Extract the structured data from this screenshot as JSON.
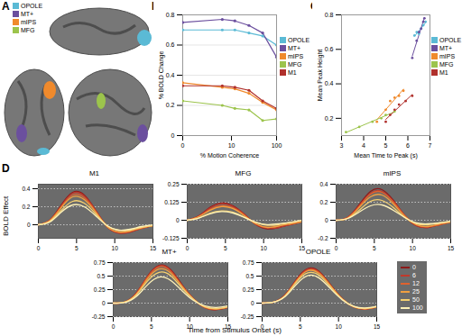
{
  "chart_data": [
    {
      "panel": "A",
      "type": "legend",
      "series": [
        {
          "name": "OPOLE",
          "color": "#5bbad5"
        },
        {
          "name": "MT+",
          "color": "#6b4f9e"
        },
        {
          "name": "mIPS",
          "color": "#f08a2c"
        },
        {
          "name": "MFG",
          "color": "#9cc44c"
        }
      ]
    },
    {
      "panel": "B",
      "type": "line",
      "x_label": "% Motion Coherence",
      "y_label": "% BOLD Change",
      "x": [
        0,
        6,
        12,
        25,
        50,
        100
      ],
      "xlim": [
        0,
        100
      ],
      "xticks": [
        0,
        10,
        100
      ],
      "ylim": [
        0,
        0.8
      ],
      "yticks": [
        0,
        0.2,
        0.4,
        0.6,
        0.8
      ],
      "grid": true,
      "legend": "right",
      "marker": "circle",
      "series": [
        {
          "name": "OPOLE",
          "color": "#5bbad5",
          "values": [
            0.7,
            0.7,
            0.7,
            0.68,
            0.66,
            0.6
          ]
        },
        {
          "name": "MT+",
          "color": "#6b4f9e",
          "values": [
            0.75,
            0.77,
            0.76,
            0.73,
            0.68,
            0.52
          ]
        },
        {
          "name": "mIPS",
          "color": "#f08a2c",
          "values": [
            0.35,
            0.32,
            0.31,
            0.28,
            0.22,
            0.17
          ]
        },
        {
          "name": "MFG",
          "color": "#9cc44c",
          "values": [
            0.23,
            0.2,
            0.18,
            0.17,
            0.1,
            0.11
          ]
        },
        {
          "name": "M1",
          "color": "#b0302c",
          "values": [
            0.33,
            0.33,
            0.32,
            0.3,
            0.23,
            0.18
          ]
        }
      ]
    },
    {
      "panel": "C",
      "type": "scatter",
      "x_label": "Mean Time to Peak (s)",
      "y_label": "Mean Peak Height",
      "xlim": [
        3,
        7
      ],
      "xticks": [
        3,
        4,
        5,
        6,
        7
      ],
      "ylim": [
        0.1,
        0.8
      ],
      "yticks": [
        0.2,
        0.4,
        0.6,
        0.8
      ],
      "grid": false,
      "legend": "right",
      "marker": "circle",
      "series": [
        {
          "name": "OPOLE",
          "color": "#5bbad5",
          "x": [
            6.3,
            6.4,
            6.5,
            6.6,
            6.7,
            6.8
          ],
          "values": [
            0.68,
            0.7,
            0.69,
            0.72,
            0.74,
            0.76
          ]
        },
        {
          "name": "MT+",
          "color": "#6b4f9e",
          "x": [
            6.2,
            6.4,
            6.5,
            6.6,
            6.7,
            6.75
          ],
          "values": [
            0.55,
            0.65,
            0.7,
            0.72,
            0.76,
            0.78
          ]
        },
        {
          "name": "mIPS",
          "color": "#f08a2c",
          "x": [
            4.6,
            5.0,
            5.2,
            5.4,
            5.6,
            5.8
          ],
          "values": [
            0.18,
            0.25,
            0.3,
            0.32,
            0.33,
            0.36
          ]
        },
        {
          "name": "MFG",
          "color": "#9cc44c",
          "x": [
            3.2,
            3.8,
            4.4,
            4.8,
            5.0,
            5.4
          ],
          "values": [
            0.12,
            0.15,
            0.18,
            0.2,
            0.22,
            0.24
          ]
        },
        {
          "name": "M1",
          "color": "#b0302c",
          "x": [
            5.0,
            5.2,
            5.4,
            5.6,
            5.9,
            6.2
          ],
          "values": [
            0.18,
            0.22,
            0.25,
            0.28,
            0.3,
            0.33
          ]
        }
      ]
    },
    {
      "panel": "D",
      "type": "line",
      "x_label": "Time from Stimulus Onset (s)",
      "y_label": "BOLD Effect",
      "x": [
        0,
        1.5,
        3,
        4.5,
        6,
        7.5,
        9,
        10.5,
        12,
        13.5,
        15
      ],
      "xlim": [
        0,
        15
      ],
      "xticks": [
        0,
        5,
        10,
        15
      ],
      "grid": true,
      "legend": "right",
      "legend_series": [
        {
          "name": "0",
          "color": "#8b1a1a"
        },
        {
          "name": "6",
          "color": "#c0392b"
        },
        {
          "name": "12",
          "color": "#e0622e"
        },
        {
          "name": "25",
          "color": "#f0a040"
        },
        {
          "name": "50",
          "color": "#f5d070"
        },
        {
          "name": "100",
          "color": "#fff2b8"
        }
      ],
      "charts": [
        {
          "title": "M1",
          "ylim": [
            -0.15,
            0.45
          ],
          "yticks": [
            0,
            0.2,
            0.4
          ],
          "series": [
            {
              "name": "0",
              "values": [
                0,
                0.05,
                0.22,
                0.36,
                0.33,
                0.16,
                -0.02,
                -0.09,
                -0.08,
                -0.04,
                -0.01
              ]
            },
            {
              "name": "6",
              "values": [
                0,
                0.05,
                0.21,
                0.35,
                0.32,
                0.16,
                -0.02,
                -0.09,
                -0.08,
                -0.04,
                -0.01
              ]
            },
            {
              "name": "12",
              "values": [
                0,
                0.05,
                0.2,
                0.33,
                0.3,
                0.15,
                -0.02,
                -0.08,
                -0.07,
                -0.04,
                -0.01
              ]
            },
            {
              "name": "25",
              "values": [
                0,
                0.04,
                0.19,
                0.31,
                0.28,
                0.14,
                -0.02,
                -0.08,
                -0.07,
                -0.03,
                -0.01
              ]
            },
            {
              "name": "50",
              "values": [
                0,
                0.04,
                0.16,
                0.26,
                0.24,
                0.12,
                -0.01,
                -0.06,
                -0.06,
                -0.03,
                -0.01
              ]
            },
            {
              "name": "100",
              "values": [
                0,
                0.03,
                0.14,
                0.22,
                0.2,
                0.1,
                -0.01,
                -0.06,
                -0.05,
                -0.02,
                0
              ]
            }
          ]
        },
        {
          "title": "MFG",
          "ylim": [
            -0.125,
            0.25
          ],
          "yticks": [
            -0.125,
            0,
            0.125,
            0.25
          ],
          "series": [
            {
              "name": "0",
              "values": [
                0,
                0.03,
                0.09,
                0.12,
                0.1,
                0.04,
                -0.03,
                -0.06,
                -0.05,
                -0.03,
                -0.01
              ]
            },
            {
              "name": "6",
              "values": [
                0,
                0.03,
                0.085,
                0.115,
                0.095,
                0.04,
                -0.03,
                -0.055,
                -0.05,
                -0.03,
                -0.01
              ]
            },
            {
              "name": "12",
              "values": [
                0,
                0.025,
                0.075,
                0.1,
                0.085,
                0.035,
                -0.025,
                -0.05,
                -0.04,
                -0.025,
                -0.01
              ]
            },
            {
              "name": "25",
              "values": [
                0,
                0.025,
                0.07,
                0.095,
                0.08,
                0.03,
                -0.025,
                -0.05,
                -0.04,
                -0.025,
                -0.01
              ]
            },
            {
              "name": "50",
              "values": [
                0,
                0.015,
                0.05,
                0.065,
                0.055,
                0.02,
                -0.015,
                -0.035,
                -0.03,
                -0.015,
                0
              ]
            },
            {
              "name": "100",
              "values": [
                0,
                0.015,
                0.045,
                0.06,
                0.05,
                0.02,
                -0.015,
                -0.03,
                -0.025,
                -0.015,
                0
              ]
            }
          ]
        },
        {
          "title": "mIPS",
          "ylim": [
            -0.2,
            0.4
          ],
          "yticks": [
            -0.2,
            0,
            0.2,
            0.4
          ],
          "series": [
            {
              "name": "0",
              "values": [
                0,
                0.03,
                0.17,
                0.32,
                0.34,
                0.22,
                0.05,
                -0.06,
                -0.08,
                -0.05,
                -0.02
              ]
            },
            {
              "name": "6",
              "values": [
                0,
                0.03,
                0.16,
                0.3,
                0.32,
                0.21,
                0.05,
                -0.06,
                -0.08,
                -0.05,
                -0.02
              ]
            },
            {
              "name": "12",
              "values": [
                0,
                0.03,
                0.15,
                0.29,
                0.31,
                0.2,
                0.05,
                -0.05,
                -0.07,
                -0.05,
                -0.02
              ]
            },
            {
              "name": "25",
              "values": [
                0,
                0.02,
                0.14,
                0.26,
                0.28,
                0.18,
                0.04,
                -0.05,
                -0.07,
                -0.04,
                -0.02
              ]
            },
            {
              "name": "50",
              "values": [
                0,
                0.02,
                0.11,
                0.21,
                0.22,
                0.14,
                0.03,
                -0.04,
                -0.05,
                -0.03,
                -0.01
              ]
            },
            {
              "name": "100",
              "values": [
                0,
                0.02,
                0.09,
                0.16,
                0.17,
                0.11,
                0.03,
                -0.03,
                -0.04,
                -0.03,
                -0.01
              ]
            }
          ]
        },
        {
          "title": "MT+",
          "ylim": [
            -0.25,
            0.75
          ],
          "yticks": [
            -0.25,
            0,
            0.25,
            0.5,
            0.75
          ],
          "series": [
            {
              "name": "0",
              "values": [
                0,
                0.02,
                0.18,
                0.5,
                0.7,
                0.62,
                0.34,
                0.08,
                -0.08,
                -0.12,
                -0.08
              ]
            },
            {
              "name": "6",
              "values": [
                0,
                0.02,
                0.18,
                0.49,
                0.69,
                0.61,
                0.33,
                0.08,
                -0.08,
                -0.12,
                -0.08
              ]
            },
            {
              "name": "12",
              "values": [
                0,
                0.02,
                0.17,
                0.48,
                0.67,
                0.59,
                0.32,
                0.08,
                -0.08,
                -0.11,
                -0.08
              ]
            },
            {
              "name": "25",
              "values": [
                0,
                0.02,
                0.16,
                0.45,
                0.63,
                0.56,
                0.31,
                0.07,
                -0.07,
                -0.11,
                -0.07
              ]
            },
            {
              "name": "50",
              "values": [
                0,
                0.02,
                0.15,
                0.41,
                0.57,
                0.51,
                0.28,
                0.07,
                -0.07,
                -0.1,
                -0.07
              ]
            },
            {
              "name": "100",
              "values": [
                0,
                0.01,
                0.12,
                0.34,
                0.48,
                0.42,
                0.23,
                0.05,
                -0.05,
                -0.08,
                -0.05
              ]
            }
          ]
        },
        {
          "title": "OPOLE",
          "ylim": [
            -0.25,
            0.75
          ],
          "yticks": [
            -0.25,
            0,
            0.25,
            0.5,
            0.75
          ],
          "series": [
            {
              "name": "0",
              "values": [
                0,
                0.02,
                0.15,
                0.44,
                0.64,
                0.58,
                0.33,
                0.08,
                -0.07,
                -0.11,
                -0.07
              ]
            },
            {
              "name": "6",
              "values": [
                0,
                0.02,
                0.15,
                0.43,
                0.63,
                0.57,
                0.32,
                0.08,
                -0.07,
                -0.11,
                -0.07
              ]
            },
            {
              "name": "12",
              "values": [
                0,
                0.02,
                0.14,
                0.42,
                0.61,
                0.56,
                0.32,
                0.08,
                -0.07,
                -0.11,
                -0.07
              ]
            },
            {
              "name": "25",
              "values": [
                0,
                0.02,
                0.14,
                0.41,
                0.6,
                0.54,
                0.31,
                0.07,
                -0.07,
                -0.1,
                -0.07
              ]
            },
            {
              "name": "50",
              "values": [
                0,
                0.02,
                0.13,
                0.39,
                0.56,
                0.51,
                0.29,
                0.07,
                -0.06,
                -0.1,
                -0.06
              ]
            },
            {
              "name": "100",
              "values": [
                0,
                0.02,
                0.12,
                0.35,
                0.51,
                0.46,
                0.26,
                0.06,
                -0.06,
                -0.09,
                -0.06
              ]
            }
          ]
        }
      ]
    }
  ]
}
